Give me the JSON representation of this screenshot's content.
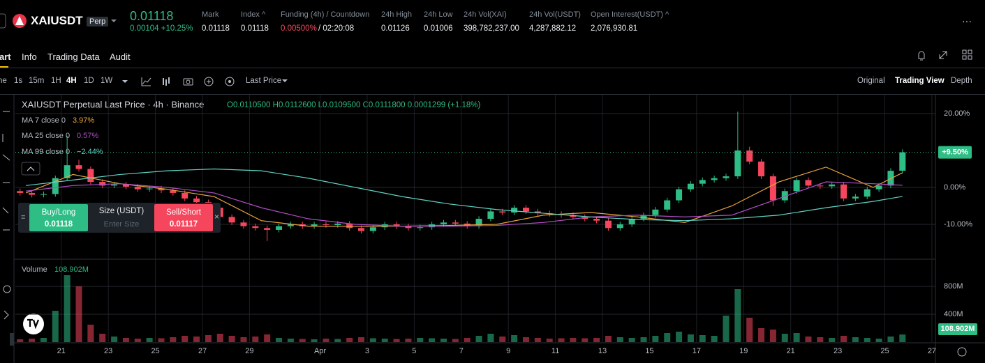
{
  "header": {
    "symbol": "XAIUSDT",
    "badge": "Perp",
    "price": "0.01118",
    "change": "0.00104 +10.25%",
    "stats": [
      {
        "label": "Mark",
        "value": "0.01118"
      },
      {
        "label": "Index ^",
        "value": "0.01118"
      },
      {
        "label": "Funding (4h) / Countdown",
        "value": "0.00500%",
        "value2": "/ 02:20:08"
      },
      {
        "label": "24h High",
        "value": "0.01126"
      },
      {
        "label": "24h Low",
        "value": "0.01006"
      },
      {
        "label": "24h Vol(XAI)",
        "value": "398,782,237.00"
      },
      {
        "label": "24h Vol(USDT)",
        "value": "4,287,882.12"
      },
      {
        "label": "Open Interest(USDT) ^",
        "value": "2,076,930.81"
      }
    ],
    "more": "···"
  },
  "tabs": [
    "art",
    "Info",
    "Trading Data",
    "Audit"
  ],
  "toolbar": {
    "intervals": [
      "ne",
      "1s",
      "15m",
      "1H",
      "4H",
      "1D",
      "1W"
    ],
    "price_type": "Last Price",
    "views": [
      "Original",
      "Trading View",
      "Depth"
    ]
  },
  "trade_panel": {
    "buy": "Buy/Long",
    "buy_price": "0.01118",
    "size": "Size (USDT)",
    "size_placeholder": "Enter Size",
    "sell": "Sell/Short",
    "sell_price": "0.01117"
  },
  "chart_data": [
    {
      "type": "candlestick",
      "title": "XAIUSDT Perpetual Last Price · 4h · Binance",
      "ohlc_text": "O0.0110500 H0.0112600 L0.0109500 C0.0111800 0.0001299 (+1.18%)",
      "up_color": "#2ebd85",
      "down_color": "#f6465d",
      "grid": true,
      "xlim": [
        19.05,
        58.15
      ],
      "xticks": [
        21,
        23,
        25,
        27,
        29,
        {
          "value": 32,
          "label": "Apr"
        },
        {
          "value": 34,
          "label": "3"
        },
        {
          "value": 36,
          "label": "5"
        },
        {
          "value": 38,
          "label": "7"
        },
        {
          "value": 40,
          "label": "9"
        },
        {
          "value": 42,
          "label": "11"
        },
        {
          "value": 44,
          "label": "13"
        },
        {
          "value": 46,
          "label": "15"
        },
        {
          "value": 48,
          "label": "17"
        },
        {
          "value": 50,
          "label": "19"
        },
        {
          "value": 52,
          "label": "21"
        },
        {
          "value": 54,
          "label": "23"
        },
        {
          "value": 56,
          "label": "25"
        },
        {
          "value": 58,
          "label": "27"
        }
      ],
      "ylim": [
        -19.06,
        25.09
      ],
      "yticks": [
        {
          "value": 20,
          "label": "20.00%"
        },
        {
          "value": 0,
          "label": "0.00%"
        },
        {
          "value": -10,
          "label": "-10.00%"
        }
      ],
      "last_label": "+9.50%",
      "x": [
        19.25,
        19.75,
        20.25,
        20.75,
        21.25,
        21.75,
        22.25,
        22.75,
        23.25,
        23.75,
        24.25,
        24.75,
        25.25,
        25.75,
        26.25,
        26.75,
        27.25,
        27.75,
        28.25,
        28.75,
        29.25,
        29.75,
        30.25,
        30.75,
        31.25,
        31.75,
        32.25,
        32.75,
        33.25,
        33.75,
        34.25,
        34.75,
        35.25,
        35.75,
        36.25,
        36.75,
        37.25,
        37.75,
        38.25,
        38.75,
        39.25,
        39.75,
        40.25,
        40.75,
        41.25,
        41.75,
        42.25,
        42.75,
        43.25,
        43.75,
        44.25,
        44.75,
        45.25,
        45.75,
        46.25,
        46.75,
        47.25,
        47.75,
        48.25,
        48.75,
        49.25,
        49.75,
        50.25,
        50.75,
        51.25,
        51.75,
        52.25,
        52.75,
        53.25,
        53.75,
        54.25,
        54.75,
        55.25,
        55.75,
        56.25,
        56.75
      ],
      "open": [
        -1.0,
        -1.5,
        -2.0,
        -1.8,
        2.5,
        6.0,
        5.0,
        1.5,
        0.5,
        0.8,
        0.2,
        -0.5,
        -0.3,
        -0.8,
        -1.5,
        -3.0,
        -4.0,
        -5.5,
        -8.0,
        -9.5,
        -10.5,
        -11.0,
        -11.5,
        -10.5,
        -10.0,
        -10.5,
        -10.0,
        -10.2,
        -9.8,
        -11.0,
        -11.8,
        -10.8,
        -10.0,
        -10.5,
        -11.0,
        -10.8,
        -10.0,
        -9.5,
        -9.8,
        -10.5,
        -8.5,
        -6.5,
        -6.8,
        -5.5,
        -6.5,
        -7.0,
        -7.2,
        -7.5,
        -8.0,
        -8.5,
        -9.0,
        -11.0,
        -10.0,
        -8.5,
        -7.5,
        -6.0,
        -3.5,
        -0.5,
        1.0,
        2.0,
        2.5,
        3.0,
        10.0,
        7.0,
        3.0,
        -3.5,
        -1.0,
        2.0,
        0.5,
        0.3,
        0.8,
        -3.0,
        -2.5,
        -0.5,
        0.5,
        4.5
      ],
      "high": [
        -0.3,
        -0.8,
        -1.1,
        3.2,
        14.0,
        7.5,
        5.7,
        2.2,
        1.5,
        1.5,
        0.9,
        0.4,
        0.4,
        -0.1,
        -0.8,
        -2.3,
        -3.3,
        -4.8,
        -7.3,
        -8.8,
        -9.8,
        -10.3,
        -9.8,
        -9.3,
        -9.3,
        -9.3,
        -9.3,
        -9.1,
        -9.1,
        -10.3,
        -10.1,
        -9.3,
        -9.3,
        -9.8,
        -10.1,
        -9.3,
        -8.8,
        -8.8,
        -9.1,
        -7.8,
        -5.8,
        -5.8,
        -4.8,
        -4.8,
        -5.8,
        -6.3,
        -6.5,
        -6.8,
        -7.3,
        -7.8,
        -8.3,
        -9.3,
        -7.8,
        -6.8,
        -5.3,
        -2.8,
        0.2,
        1.7,
        2.7,
        3.2,
        3.7,
        20.5,
        11.0,
        7.7,
        3.7,
        -0.3,
        2.7,
        2.7,
        1.2,
        1.5,
        1.5,
        -1.8,
        0.2,
        1.2,
        5.2,
        10.3
      ],
      "low": [
        -2.2,
        -2.7,
        -2.7,
        -2.5,
        1.8,
        4.3,
        0.8,
        -0.2,
        -0.2,
        -0.5,
        -1.2,
        -1.2,
        -1.5,
        -2.2,
        -3.7,
        -4.7,
        -6.2,
        -8.7,
        -10.2,
        -11.2,
        -11.7,
        -14.5,
        -12.2,
        -11.2,
        -11.2,
        -11.2,
        -10.9,
        -10.9,
        -11.7,
        -12.5,
        -12.5,
        -11.5,
        -11.2,
        -11.7,
        -11.7,
        -11.5,
        -10.7,
        -10.5,
        -11.2,
        -11.2,
        -9.2,
        -7.5,
        -7.5,
        -7.2,
        -7.7,
        -7.9,
        -8.2,
        -8.7,
        -9.2,
        -9.7,
        -11.7,
        -11.7,
        -10.7,
        -9.2,
        -8.2,
        -6.7,
        -4.2,
        -1.2,
        0.3,
        1.3,
        1.8,
        2.3,
        6.3,
        2.3,
        -5.0,
        -4.2,
        -1.7,
        -0.2,
        -0.4,
        -0.4,
        -3.7,
        -3.7,
        -3.2,
        -1.2,
        -0.2,
        3.8
      ],
      "close": [
        -1.5,
        -2.0,
        -1.8,
        2.5,
        6.0,
        5.0,
        1.5,
        0.5,
        0.8,
        0.2,
        -0.5,
        -0.3,
        -0.8,
        -1.5,
        -3.0,
        -4.0,
        -5.5,
        -8.0,
        -9.5,
        -10.5,
        -11.0,
        -11.5,
        -10.5,
        -10.0,
        -10.5,
        -10.0,
        -10.2,
        -9.8,
        -11.0,
        -11.8,
        -10.8,
        -10.0,
        -10.5,
        -11.0,
        -10.8,
        -10.0,
        -9.5,
        -9.8,
        -10.5,
        -8.5,
        -6.5,
        -6.8,
        -5.5,
        -6.5,
        -7.0,
        -7.2,
        -7.5,
        -8.0,
        -8.5,
        -9.0,
        -11.0,
        -10.0,
        -8.5,
        -7.5,
        -6.0,
        -3.5,
        -0.5,
        1.0,
        2.0,
        2.5,
        3.0,
        10.0,
        7.0,
        3.0,
        -3.5,
        -1.0,
        2.0,
        0.5,
        0.3,
        0.8,
        -3.0,
        -2.5,
        -0.5,
        0.5,
        4.5,
        9.5
      ],
      "series": [
        {
          "name": "MA 7 close 0",
          "legend_label": "3.97%",
          "color": "#e8a33c",
          "x": [
            19.5,
            21.5,
            23.5,
            25.5,
            27.5,
            29.5,
            31.5,
            33.5,
            35.5,
            37.5,
            39.5,
            41.5,
            43.5,
            45.5,
            47.5,
            49.5,
            51.5,
            53.5,
            55.5,
            56.75
          ],
          "values": [
            -1.5,
            3.5,
            1.0,
            -0.5,
            -2.5,
            -9.0,
            -10.5,
            -10.5,
            -10.5,
            -10.3,
            -10.0,
            -7.5,
            -6.8,
            -8.0,
            -9.5,
            -5.0,
            1.5,
            5.5,
            0.0,
            3.97
          ]
        },
        {
          "name": "MA 25 close 0",
          "legend_label": "0.57%",
          "color": "#b14fc5",
          "x": [
            19.5,
            21.5,
            23.5,
            25.5,
            27.5,
            29.5,
            31.5,
            33.5,
            35.5,
            37.5,
            39.5,
            41.5,
            43.5,
            45.5,
            47.5,
            49.5,
            51.5,
            53.5,
            55.5,
            56.75
          ],
          "values": [
            -1.0,
            0.5,
            1.0,
            0.0,
            -1.5,
            -5.5,
            -8.5,
            -10.0,
            -10.5,
            -10.5,
            -10.3,
            -9.5,
            -8.0,
            -7.5,
            -8.0,
            -7.5,
            -3.0,
            1.5,
            1.0,
            0.57
          ]
        },
        {
          "name": "MA 99 close 0",
          "legend_label": "−2.44%",
          "color": "#5fd3c4",
          "x": [
            19.5,
            21.5,
            23.5,
            25.5,
            27.5,
            29.5,
            31.5,
            33.5,
            35.5,
            37.5,
            39.5,
            41.5,
            43.5,
            45.5,
            47.5,
            49.5,
            51.5,
            53.5,
            55.5,
            56.75
          ],
          "values": [
            0.5,
            2.0,
            3.5,
            4.5,
            5.0,
            4.5,
            2.5,
            0.0,
            -2.5,
            -4.5,
            -6.0,
            -7.0,
            -8.0,
            -8.7,
            -9.0,
            -8.5,
            -7.5,
            -5.5,
            -3.8,
            -2.44
          ]
        }
      ]
    },
    {
      "type": "bar",
      "title": "Volume",
      "last_label": "108.902M",
      "ylim": [
        0,
        1160
      ],
      "yticks": [
        {
          "value": 800,
          "label": "800M"
        },
        {
          "value": 400,
          "label": "400M"
        }
      ],
      "values": [
        40,
        50,
        60,
        450,
        960,
        800,
        250,
        120,
        80,
        60,
        50,
        60,
        55,
        70,
        90,
        80,
        100,
        120,
        90,
        70,
        80,
        110,
        60,
        50,
        45,
        40,
        50,
        45,
        60,
        70,
        55,
        50,
        45,
        50,
        60,
        55,
        50,
        45,
        60,
        90,
        120,
        80,
        100,
        70,
        60,
        50,
        55,
        60,
        55,
        60,
        90,
        70,
        60,
        70,
        90,
        130,
        150,
        110,
        100,
        90,
        380,
        760,
        350,
        200,
        180,
        120,
        130,
        80,
        70,
        60,
        90,
        70,
        60,
        50,
        80,
        108.902
      ]
    }
  ]
}
